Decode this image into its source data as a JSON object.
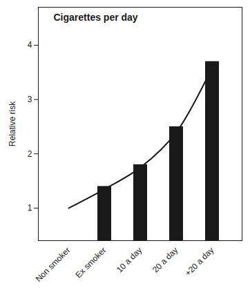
{
  "chart_data": {
    "type": "bar",
    "title": "Cigarettes per day",
    "y_label": "Relative risk",
    "categories": [
      "Non smoker",
      "Ex smoker",
      "10 a day",
      "20 a day",
      "+20 a day"
    ],
    "series": [
      {
        "type": "bar",
        "color": "#1a1a1a",
        "values": [
          null,
          1.4,
          1.8,
          2.5,
          3.7
        ]
      },
      {
        "type": "line",
        "color": "#1a1a1a",
        "values": [
          1.0,
          1.35,
          1.75,
          2.4,
          3.6
        ]
      }
    ],
    "ylim": [
      0.4,
      4.7
    ],
    "yticks": [
      1,
      2,
      3,
      4
    ]
  }
}
